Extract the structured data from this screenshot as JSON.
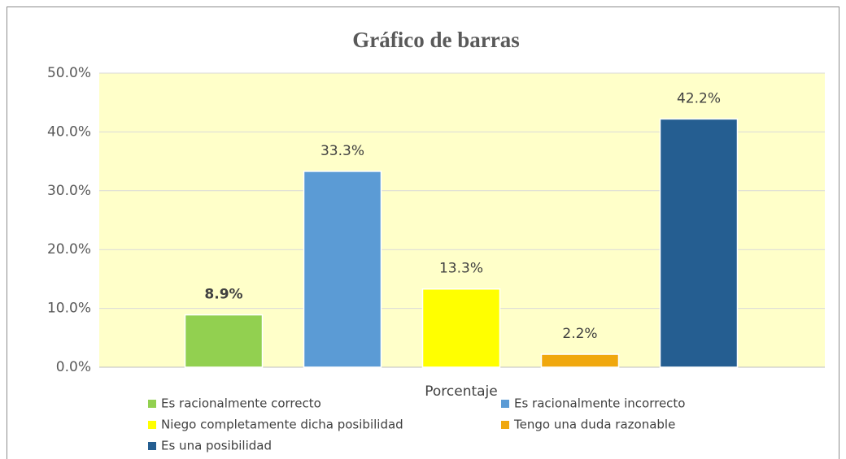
{
  "chart_data": {
    "type": "bar",
    "title": "Gráfico de barras",
    "categories": [
      "Porcentaje"
    ],
    "series": [
      {
        "name": "Es racionalmente correcto",
        "color": "#92d050",
        "values": [
          8.9
        ],
        "value_labels": [
          "8.9%"
        ]
      },
      {
        "name": "Es racionalmente incorrecto",
        "color": "#5b9bd5",
        "values": [
          33.3
        ],
        "value_labels": [
          "33.3%"
        ]
      },
      {
        "name": "Niego completamente dicha posibilidad",
        "color": "#ffff00",
        "values": [
          13.3
        ],
        "value_labels": [
          "13.3%"
        ]
      },
      {
        "name": "Tengo una duda razonable",
        "color": "#f0a80e",
        "values": [
          2.2
        ],
        "value_labels": [
          "2.2%"
        ]
      },
      {
        "name": "Es una posibilidad",
        "color": "#255e91",
        "values": [
          42.2
        ],
        "value_labels": [
          "42.2%"
        ]
      }
    ],
    "ylim": [
      0,
      50
    ],
    "yticks": [
      {
        "value": 0,
        "label": "0.0%"
      },
      {
        "value": 10,
        "label": "10.0%"
      },
      {
        "value": 20,
        "label": "20.0%"
      },
      {
        "value": 30,
        "label": "30.0%"
      },
      {
        "value": 40,
        "label": "40.0%"
      },
      {
        "value": 50,
        "label": "50.0%"
      }
    ],
    "grid": true
  }
}
